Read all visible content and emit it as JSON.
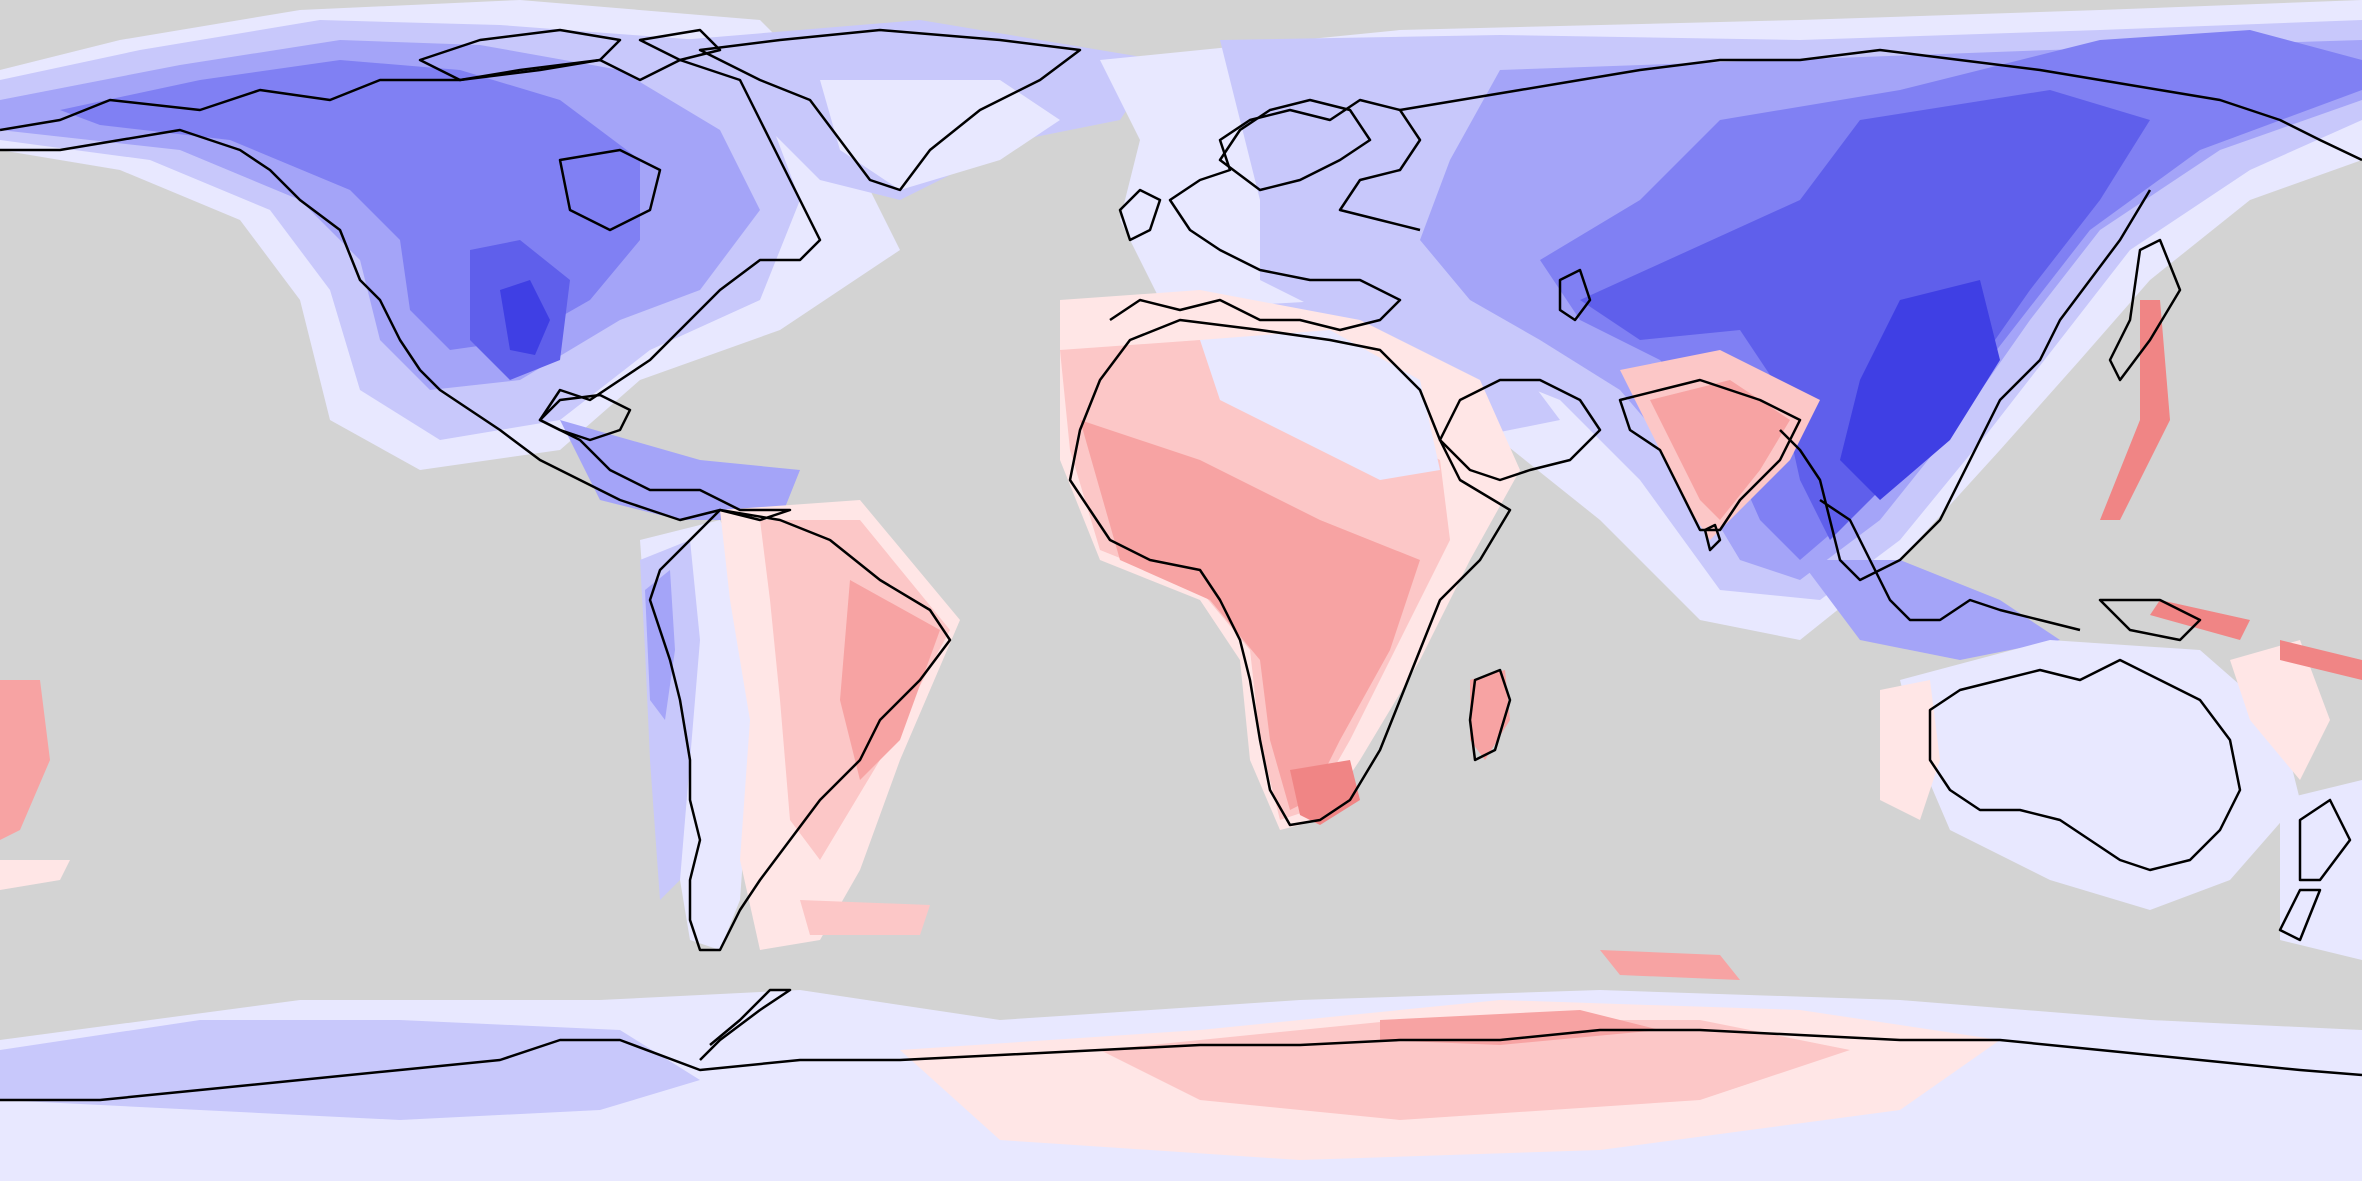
{
  "map": {
    "projection": "equirectangular",
    "background": "#d3d3d3",
    "coastline_color": "#000000",
    "palette": {
      "blue_1": "#e8e8ff",
      "blue_2": "#c8c8fb",
      "blue_3": "#a4a4f8",
      "blue_4": "#8080f3",
      "blue_5": "#5f5feb",
      "blue_6": "#3f3fe4",
      "red_1": "#ffe6e6",
      "red_2": "#fcc7c7",
      "red_3": "#f7a3a3",
      "red_4": "#f08585"
    }
  }
}
